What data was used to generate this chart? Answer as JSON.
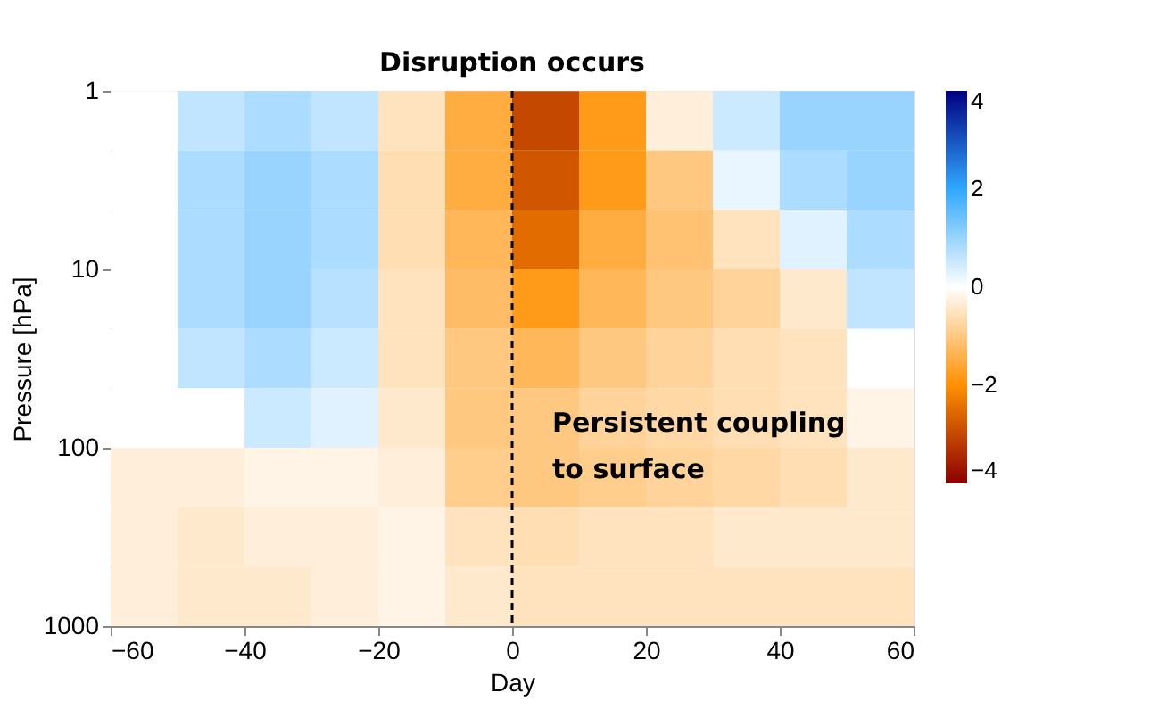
{
  "chart_data": {
    "type": "heatmap",
    "xlabel": "Day",
    "ylabel": "Pressure [hPa]",
    "x": [
      -55,
      -45,
      -35,
      -25,
      -15,
      -5,
      5,
      15,
      25,
      35,
      45,
      55
    ],
    "y": [
      1.47,
      3.16,
      6.81,
      14.7,
      31.6,
      68.1,
      147,
      316,
      681
    ],
    "cells": [
      [
        0,
        0.6,
        0.8,
        0.6,
        -0.5,
        -1.5,
        -3.0,
        -1.8,
        -0.3,
        0.5,
        1.0,
        1.0
      ],
      [
        0,
        0.8,
        1.0,
        0.8,
        -0.6,
        -1.5,
        -2.8,
        -1.8,
        -1.0,
        0.2,
        0.8,
        1.0
      ],
      [
        0,
        0.8,
        1.0,
        0.8,
        -0.6,
        -1.3,
        -2.5,
        -1.5,
        -1.1,
        -0.5,
        0.3,
        0.8
      ],
      [
        0,
        0.8,
        1.0,
        0.7,
        -0.5,
        -1.2,
        -1.8,
        -1.3,
        -1.0,
        -0.8,
        -0.4,
        0.6
      ],
      [
        0,
        0.6,
        0.8,
        0.5,
        -0.5,
        -1.0,
        -1.3,
        -1.0,
        -0.8,
        -0.6,
        -0.5,
        0
      ],
      [
        0,
        0,
        0.5,
        0.3,
        -0.4,
        -1.0,
        -1.0,
        -0.8,
        -0.7,
        -0.6,
        -0.5,
        -0.2
      ],
      [
        -0.3,
        -0.3,
        -0.2,
        -0.2,
        -0.3,
        -0.9,
        -1.0,
        -0.9,
        -0.8,
        -0.7,
        -0.6,
        -0.4
      ],
      [
        -0.3,
        -0.4,
        -0.3,
        -0.3,
        -0.2,
        -0.5,
        -0.6,
        -0.5,
        -0.5,
        -0.4,
        -0.4,
        -0.4
      ],
      [
        -0.3,
        -0.4,
        -0.4,
        -0.3,
        -0.2,
        -0.4,
        -0.5,
        -0.5,
        -0.5,
        -0.5,
        -0.5,
        -0.5
      ]
    ],
    "xlim": [
      -60,
      60
    ],
    "xticks": [
      -60,
      -40,
      -20,
      0,
      20,
      40,
      60
    ],
    "ylim": [
      1000,
      1
    ],
    "yticks": [
      1,
      10,
      100,
      1000
    ],
    "log": "y",
    "clim": [
      -4,
      4
    ],
    "cticks": [
      -4,
      -2,
      0,
      2,
      4
    ],
    "grid": false,
    "ref_lines": [
      {
        "axis": "x",
        "value": 0,
        "label": null,
        "color": "#000000",
        "line_style": "dashed"
      }
    ],
    "annotations": [
      {
        "text": "Disruption occurs",
        "x": 0,
        "y": 1
      },
      "Persistent coupling to surface"
    ]
  }
}
